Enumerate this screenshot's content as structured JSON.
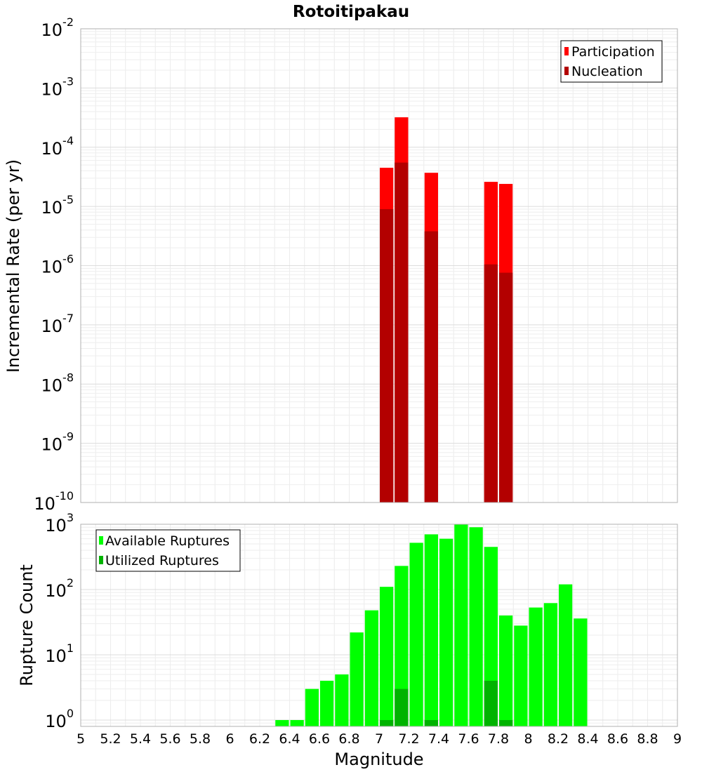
{
  "title": "Rotoitipakau",
  "xlabel": "Magnitude",
  "x_ticks": [
    "5",
    "5.2",
    "5.4",
    "5.6",
    "5.8",
    "6",
    "6.2",
    "6.4",
    "6.6",
    "6.8",
    "7",
    "7.2",
    "7.4",
    "7.6",
    "7.8",
    "8",
    "8.2",
    "8.4",
    "8.6",
    "8.8",
    "9"
  ],
  "chart_data": [
    {
      "type": "bar",
      "panel": "top",
      "ylabel": "Incremental Rate (per yr)",
      "yscale": "log",
      "ylim": [
        1e-10,
        0.01
      ],
      "xlim": [
        5,
        9
      ],
      "y_ticks": [
        {
          "base": "10",
          "exp": "-10"
        },
        {
          "base": "10",
          "exp": "-9"
        },
        {
          "base": "10",
          "exp": "-8"
        },
        {
          "base": "10",
          "exp": "-7"
        },
        {
          "base": "10",
          "exp": "-6"
        },
        {
          "base": "10",
          "exp": "-5"
        },
        {
          "base": "10",
          "exp": "-4"
        },
        {
          "base": "10",
          "exp": "-3"
        },
        {
          "base": "10",
          "exp": "-2"
        }
      ],
      "legend_position": "top-right",
      "bar_width": 0.1,
      "overlay": true,
      "series": [
        {
          "name": "Participation",
          "color": "#ff0000",
          "x": [
            7.05,
            7.15,
            7.35,
            7.75,
            7.85
          ],
          "values": [
            4.5e-05,
            0.00032,
            3.7e-05,
            2.6e-05,
            2.4e-05
          ]
        },
        {
          "name": "Nucleation",
          "color": "#b30000",
          "x": [
            7.05,
            7.15,
            7.35,
            7.75,
            7.85
          ],
          "values": [
            9e-06,
            5.5e-05,
            3.8e-06,
            1.05e-06,
            7.6e-07
          ]
        }
      ]
    },
    {
      "type": "bar",
      "panel": "bottom",
      "ylabel": "Rupture Count",
      "yscale": "log",
      "ylim": [
        0.8,
        1000
      ],
      "xlim": [
        5,
        9
      ],
      "y_ticks": [
        {
          "base": "10",
          "exp": "0"
        },
        {
          "base": "10",
          "exp": "1"
        },
        {
          "base": "10",
          "exp": "2"
        },
        {
          "base": "10",
          "exp": "3"
        }
      ],
      "legend_position": "top-left",
      "bar_width": 0.1,
      "overlay": true,
      "series": [
        {
          "name": "Available Ruptures",
          "color": "#00ff00",
          "x": [
            6.35,
            6.45,
            6.55,
            6.65,
            6.75,
            6.85,
            6.95,
            7.05,
            7.15,
            7.25,
            7.35,
            7.45,
            7.55,
            7.65,
            7.75,
            7.85,
            7.95,
            8.05,
            8.15,
            8.25,
            8.35
          ],
          "values": [
            1,
            1,
            3,
            4,
            5,
            22,
            48,
            110,
            230,
            520,
            700,
            600,
            1000,
            900,
            450,
            40,
            28,
            53,
            62,
            120,
            36
          ]
        },
        {
          "name": "Utilized Ruptures",
          "color": "#00b300",
          "x": [
            7.05,
            7.15,
            7.35,
            7.75,
            7.85
          ],
          "values": [
            1,
            3,
            1,
            4,
            1
          ]
        }
      ]
    }
  ]
}
